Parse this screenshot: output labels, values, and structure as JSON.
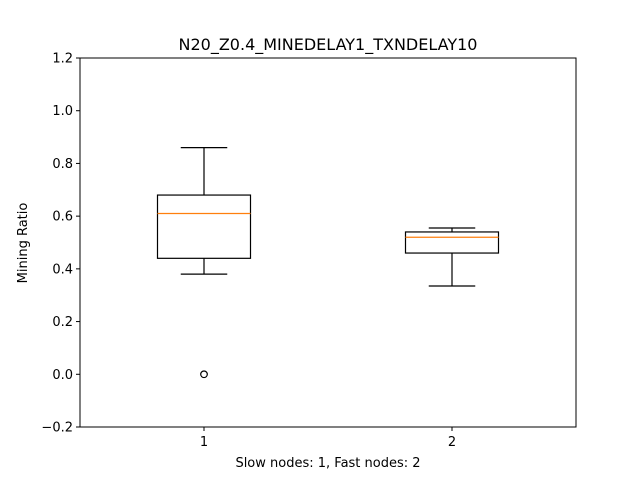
{
  "chart_data": {
    "type": "boxplot",
    "title": "N20_Z0.4_MINEDELAY1_TXNDELAY10",
    "xlabel": "Slow nodes: 1, Fast nodes: 2",
    "ylabel": "Mining Ratio",
    "ylim": [
      -0.2,
      1.2
    ],
    "xlim": [
      0.5,
      2.5
    ],
    "yticks": [
      -0.2,
      0.0,
      0.2,
      0.4,
      0.6,
      0.8,
      1.0,
      1.2
    ],
    "ytick_labels": [
      "−0.2",
      "0.0",
      "0.2",
      "0.4",
      "0.6",
      "0.8",
      "1.0",
      "1.2"
    ],
    "categories": [
      "1",
      "2"
    ],
    "boxes": [
      {
        "position": 1,
        "label": "1",
        "whisker_low": 0.38,
        "q1": 0.44,
        "median": 0.61,
        "q3": 0.68,
        "whisker_high": 0.86,
        "fliers": [
          0.0
        ]
      },
      {
        "position": 2,
        "label": "2",
        "whisker_low": 0.335,
        "q1": 0.46,
        "median": 0.52,
        "q3": 0.54,
        "whisker_high": 0.555,
        "fliers": []
      }
    ],
    "colors": {
      "box": "#000000",
      "median": "#ff7f0e",
      "flier": "#000000"
    }
  }
}
